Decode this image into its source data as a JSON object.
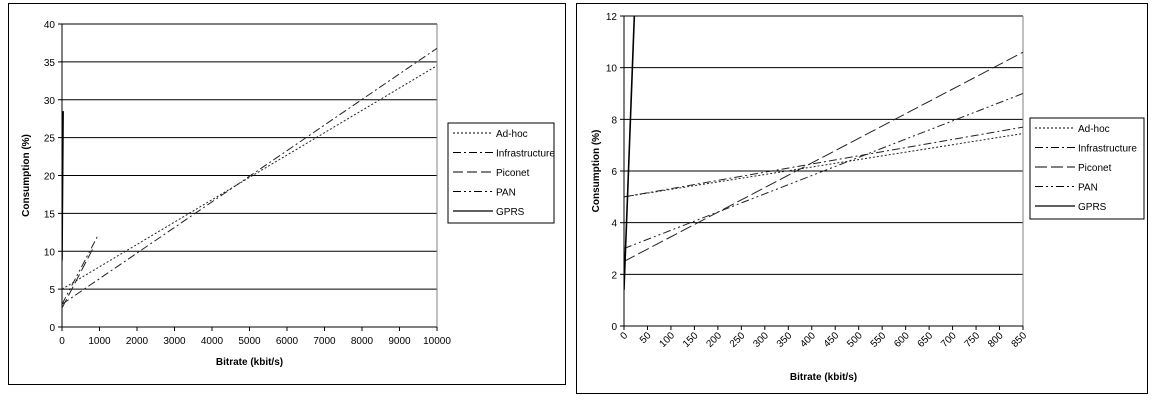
{
  "chart_data": [
    {
      "type": "line",
      "title": "",
      "xlabel": "Bitrate (kbit/s)",
      "ylabel": "Consumption (%)",
      "xlim": [
        0,
        10000
      ],
      "ylim": [
        0,
        40
      ],
      "xticks": [
        0,
        1000,
        2000,
        3000,
        4000,
        5000,
        6000,
        7000,
        8000,
        9000,
        10000
      ],
      "yticks": [
        0,
        5,
        10,
        15,
        20,
        25,
        30,
        35,
        40
      ],
      "grid": "horizontal",
      "legend": "right",
      "series": [
        {
          "name": "Ad-hoc",
          "dash": "2,2",
          "x": [
            0,
            10000
          ],
          "y": [
            5.0,
            34.5
          ]
        },
        {
          "name": "Infrastructure",
          "dash": "8,3,2,3",
          "x": [
            0,
            10000
          ],
          "y": [
            3.0,
            36.8
          ]
        },
        {
          "name": "Piconet",
          "dash": "10,4",
          "x": [
            0,
            850
          ],
          "y": [
            2.5,
            10.6
          ]
        },
        {
          "name": "PAN",
          "dash": "8,3,2,3,2,3",
          "x": [
            0,
            950
          ],
          "y": [
            3.0,
            12.0
          ]
        },
        {
          "name": "GPRS",
          "dash": "",
          "x": [
            0,
            30
          ],
          "y": [
            8.8,
            28.5
          ]
        }
      ]
    },
    {
      "type": "line",
      "title": "",
      "xlabel": "Bitrate (kbit/s)",
      "ylabel": "Consumption (%)",
      "xlim": [
        0,
        850
      ],
      "ylim": [
        0,
        12
      ],
      "xticks": [
        0,
        50,
        100,
        150,
        200,
        250,
        300,
        350,
        400,
        450,
        500,
        550,
        600,
        650,
        700,
        750,
        800,
        850
      ],
      "yticks": [
        0,
        2,
        4,
        6,
        8,
        10,
        12
      ],
      "grid": "horizontal",
      "legend": "right",
      "series": [
        {
          "name": "Ad-hoc",
          "dash": "2,2",
          "x": [
            0,
            850
          ],
          "y": [
            5.0,
            7.45
          ]
        },
        {
          "name": "Infrastructure",
          "dash": "8,3,2,3",
          "x": [
            0,
            850
          ],
          "y": [
            5.0,
            7.7
          ]
        },
        {
          "name": "Piconet",
          "dash": "12,4",
          "x": [
            0,
            850
          ],
          "y": [
            2.5,
            10.6
          ]
        },
        {
          "name": "PAN",
          "dash": "8,3,2,3,2,3",
          "x": [
            0,
            850
          ],
          "y": [
            3.0,
            9.0
          ]
        },
        {
          "name": "GPRS",
          "dash": "",
          "x": [
            0,
            22
          ],
          "y": [
            1.4,
            12.0
          ]
        }
      ]
    }
  ]
}
